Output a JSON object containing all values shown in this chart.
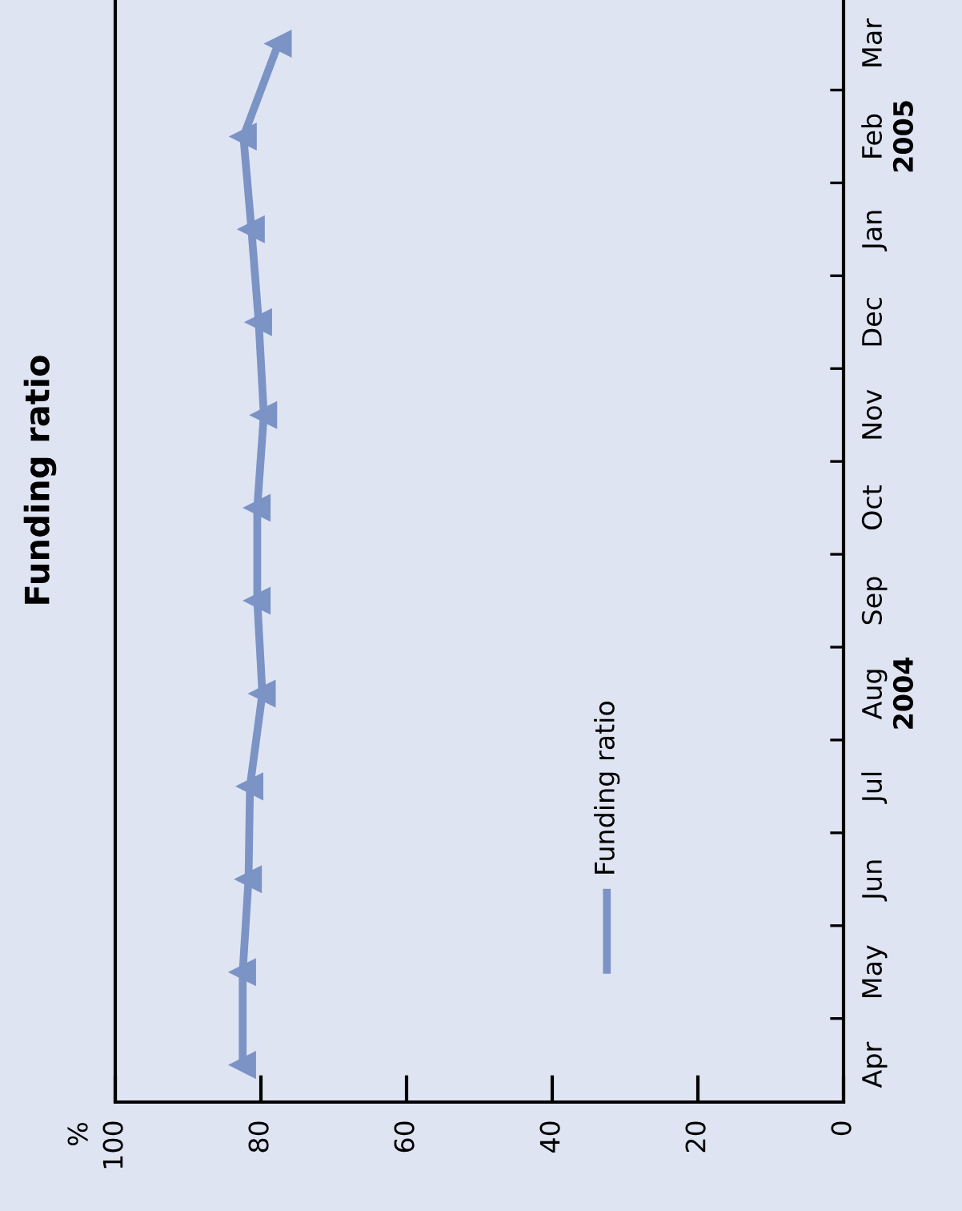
{
  "chart_data": {
    "type": "line",
    "title": "Funding ratio",
    "ylabel": "%",
    "orientation": "horizontal",
    "categories": [
      "Mar",
      "Feb",
      "Jan",
      "Dec",
      "Nov",
      "Oct",
      "Sep",
      "Aug",
      "Jul",
      "Jun",
      "May",
      "Apr"
    ],
    "series": [
      {
        "name": "Funding ratio",
        "color": "#7b93c5",
        "values": [
          77.6,
          82.4,
          81.3,
          80.3,
          79.6,
          80.5,
          80.5,
          79.8,
          81.5,
          81.7,
          82.5,
          82.5
        ]
      }
    ],
    "annotations": [
      "2005",
      "2004"
    ],
    "xlim": [
      100,
      0
    ],
    "xticks": [
      100,
      80,
      60,
      40,
      20,
      0
    ],
    "marker": "triangle",
    "line_style": "solid",
    "legend": "bottom right",
    "grid": false
  }
}
